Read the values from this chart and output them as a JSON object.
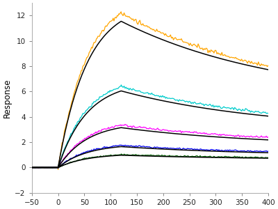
{
  "title": "",
  "ylabel": "Response",
  "xlabel": "",
  "xlim": [
    -50,
    400
  ],
  "ylim": [
    -2,
    13
  ],
  "yticks": [
    -2,
    0,
    2,
    4,
    6,
    8,
    10,
    12
  ],
  "xticks": [
    -50,
    0,
    50,
    100,
    150,
    200,
    250,
    300,
    350,
    400
  ],
  "background_color": "#ffffff",
  "curves": [
    {
      "color": "#FFA500",
      "peak": 12.2,
      "steady": 5.3,
      "tau_on": 55,
      "tau_off": 300,
      "noise": 0.08,
      "seed": 1
    },
    {
      "color": "#00CCCC",
      "peak": 6.4,
      "steady": 3.1,
      "tau_on": 55,
      "tau_off": 280,
      "noise": 0.05,
      "seed": 2
    },
    {
      "color": "#FF00FF",
      "peak": 3.35,
      "steady": 1.85,
      "tau_on": 55,
      "tau_off": 270,
      "noise": 0.04,
      "seed": 3
    },
    {
      "color": "#0000EE",
      "peak": 1.75,
      "steady": 1.0,
      "tau_on": 55,
      "tau_off": 260,
      "noise": 0.03,
      "seed": 4
    },
    {
      "color": "#006400",
      "peak": 1.02,
      "steady": 0.68,
      "tau_on": 55,
      "tau_off": 250,
      "noise": 0.025,
      "seed": 5
    }
  ],
  "black_curves": [
    {
      "peak": 11.55,
      "steady": 5.25,
      "tau_on": 55,
      "tau_off": 300
    },
    {
      "peak": 6.05,
      "steady": 2.9,
      "tau_on": 55,
      "tau_off": 280
    },
    {
      "peak": 3.15,
      "steady": 1.65,
      "tau_on": 55,
      "tau_off": 270
    },
    {
      "peak": 1.65,
      "steady": 0.92,
      "tau_on": 55,
      "tau_off": 260
    },
    {
      "peak": 0.97,
      "steady": 0.62,
      "tau_on": 55,
      "tau_off": 250
    }
  ],
  "assoc_start": 0,
  "assoc_end": 120,
  "dissoc_end": 400
}
